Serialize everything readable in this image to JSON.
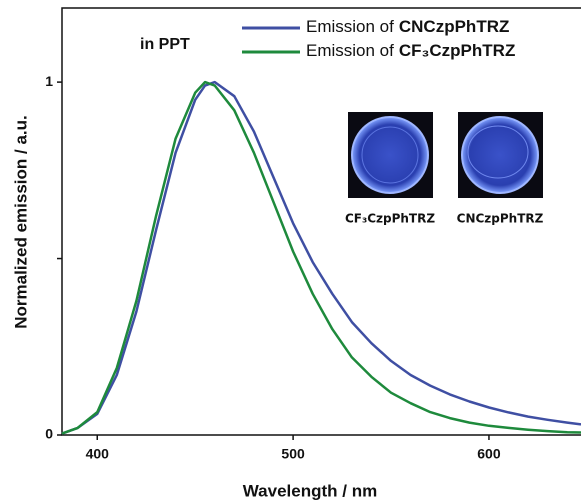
{
  "chart_data": {
    "type": "line",
    "annotation": "in PPT",
    "x_label": "Wavelength / nm",
    "y_label": "Normalized emission / a.u.",
    "legend_prefix": "Emission of",
    "x": [
      382,
      390,
      400,
      410,
      420,
      430,
      440,
      450,
      455,
      460,
      470,
      480,
      490,
      500,
      510,
      520,
      530,
      540,
      550,
      560,
      570,
      580,
      590,
      600,
      610,
      620,
      630,
      640,
      647
    ],
    "series": [
      {
        "name": "CNCzpPhTRZ",
        "color": "#3f4fa3",
        "values": [
          0.004,
          0.02,
          0.06,
          0.17,
          0.35,
          0.58,
          0.8,
          0.95,
          0.99,
          1.0,
          0.96,
          0.86,
          0.73,
          0.6,
          0.49,
          0.4,
          0.32,
          0.26,
          0.21,
          0.17,
          0.14,
          0.115,
          0.095,
          0.078,
          0.064,
          0.052,
          0.043,
          0.035,
          0.03
        ]
      },
      {
        "name": "CF₃CzpPhTRZ",
        "color": "#1e8a3c",
        "values": [
          0.004,
          0.02,
          0.065,
          0.19,
          0.38,
          0.62,
          0.84,
          0.97,
          1.0,
          0.99,
          0.92,
          0.8,
          0.66,
          0.52,
          0.4,
          0.3,
          0.22,
          0.165,
          0.12,
          0.09,
          0.065,
          0.048,
          0.035,
          0.026,
          0.02,
          0.015,
          0.011,
          0.008,
          0.007
        ]
      }
    ],
    "xlim": [
      382,
      647
    ],
    "ylim": [
      0,
      1.21
    ],
    "xticks": [
      400,
      500,
      600
    ],
    "yticks": [
      0,
      {
        "value": 0.5,
        "label": null
      },
      1
    ],
    "insets": [
      {
        "label": "CF₃CzpPhTRZ"
      },
      {
        "label": "CNCzpPhTRZ"
      }
    ]
  }
}
